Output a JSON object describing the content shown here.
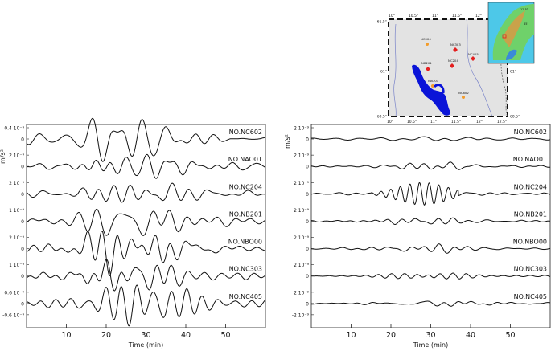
{
  "chart_data": [
    {
      "type": "line",
      "panel": "left",
      "ylabel": "m/s²",
      "xlabel": "Time (min)",
      "xlim": [
        0,
        60
      ],
      "xticks": [
        10,
        20,
        30,
        40,
        50
      ],
      "grid": false,
      "traces": [
        {
          "name": "NO.NC602",
          "ticks": [
            "0.4 10⁻⁹",
            "0"
          ]
        },
        {
          "name": "NO.NAO01",
          "ticks": [
            "2 10⁻⁹",
            "0"
          ]
        },
        {
          "name": "NO.NC204",
          "ticks": [
            "2 10⁻⁹",
            "0"
          ]
        },
        {
          "name": "NO.NB201",
          "ticks": [
            "1 10⁻⁹",
            "0"
          ]
        },
        {
          "name": "NO.NBO00",
          "ticks": [
            "2 10⁻⁹",
            "0"
          ]
        },
        {
          "name": "NO.NC303",
          "ticks": [
            "1 10⁻⁹",
            "0"
          ]
        },
        {
          "name": "NO.NC405",
          "ticks": [
            "0.6 10⁻⁹",
            "0",
            "-0.6 10⁻⁹"
          ]
        }
      ]
    },
    {
      "type": "line",
      "panel": "right",
      "ylabel": "m/s²",
      "xlabel": "Time (min)",
      "xlim": [
        0,
        60
      ],
      "xticks": [
        10,
        20,
        30,
        40,
        50
      ],
      "grid": false,
      "traces": [
        {
          "name": "NO.NC602",
          "ticks": [
            "2 10⁻⁹",
            "0"
          ]
        },
        {
          "name": "NO.NAO01",
          "ticks": [
            "2 10⁻⁹",
            "0"
          ]
        },
        {
          "name": "NO.NC204",
          "ticks": [
            "2 10⁻⁹",
            "0"
          ]
        },
        {
          "name": "NO.NB201",
          "ticks": [
            "2 10⁻⁹",
            "0"
          ]
        },
        {
          "name": "NO.NBO00",
          "ticks": [
            "2 10⁻⁹",
            "0"
          ]
        },
        {
          "name": "NO.NC303",
          "ticks": [
            "2 10⁻⁹",
            "0"
          ]
        },
        {
          "name": "NO.NC405",
          "ticks": [
            "2 10⁻⁹",
            "0",
            "-2 10⁻⁹"
          ]
        }
      ]
    }
  ],
  "map": {
    "top_labels": [
      "10°",
      "10.5°",
      "11°",
      "11.5°",
      "12°"
    ],
    "bottom_labels": [
      "10°",
      "10.5°",
      "11°",
      "11.5°",
      "12°",
      "12.5°"
    ],
    "left_labels": [
      "61.5°",
      "61°",
      "60.5°"
    ],
    "right_labels": [
      "61.5°",
      "61°",
      "60.5°"
    ],
    "stations_red": [
      "NC303",
      "NC405",
      "NB201",
      "NC204"
    ],
    "stations_orange": [
      "NC004",
      "NAO01",
      "NC602"
    ],
    "water_color": "#0a14d8",
    "land_color": "#e3e3e3",
    "inset_labels": [
      "12.5°",
      "65°"
    ]
  }
}
